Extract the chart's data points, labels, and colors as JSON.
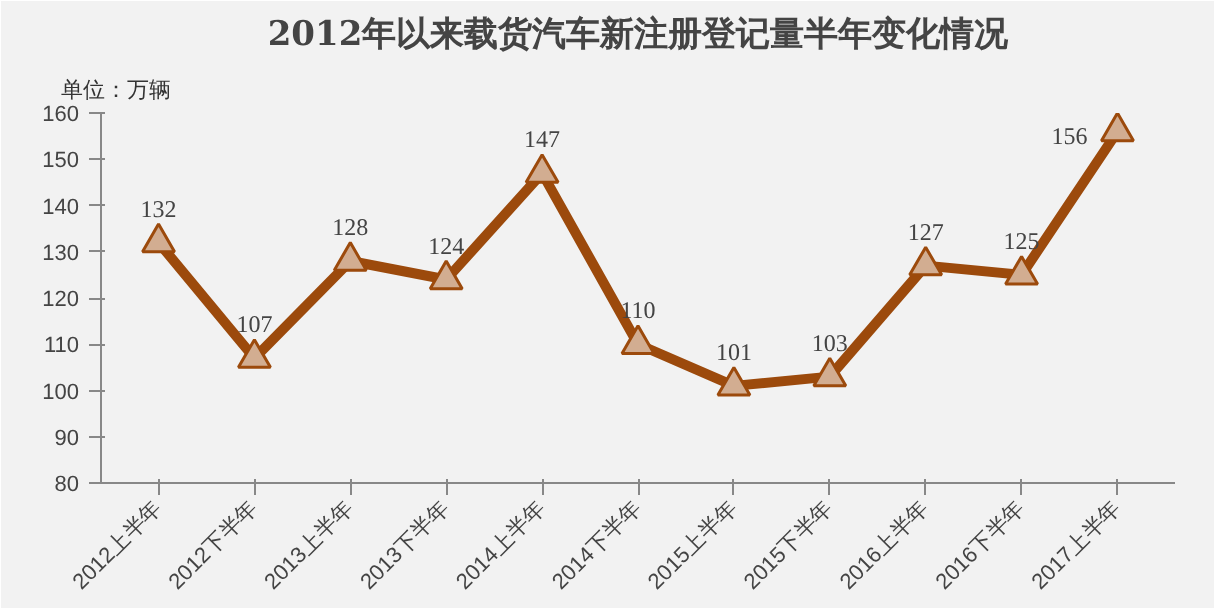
{
  "chart_data": {
    "type": "line",
    "title": "2012年以来载货汽车新注册登记量半年变化情况",
    "annotations": [
      "单位：万辆"
    ],
    "categories": [
      "2012上半年",
      "2012下半年",
      "2013上半年",
      "2013下半年",
      "2014上半年",
      "2014下半年",
      "2015上半年",
      "2015下半年",
      "2016上半年",
      "2016下半年",
      "2017上半年"
    ],
    "series": [
      {
        "color": "#9c4a0c",
        "values": [
          132,
          107,
          128,
          124,
          147,
          110,
          101,
          103,
          127,
          125,
          156
        ]
      }
    ],
    "ylim": [
      80,
      160
    ],
    "yticks": [
      80,
      90,
      100,
      110,
      120,
      130,
      140,
      150,
      160
    ],
    "data_labels": true,
    "marker": "triangle",
    "grid": false
  }
}
